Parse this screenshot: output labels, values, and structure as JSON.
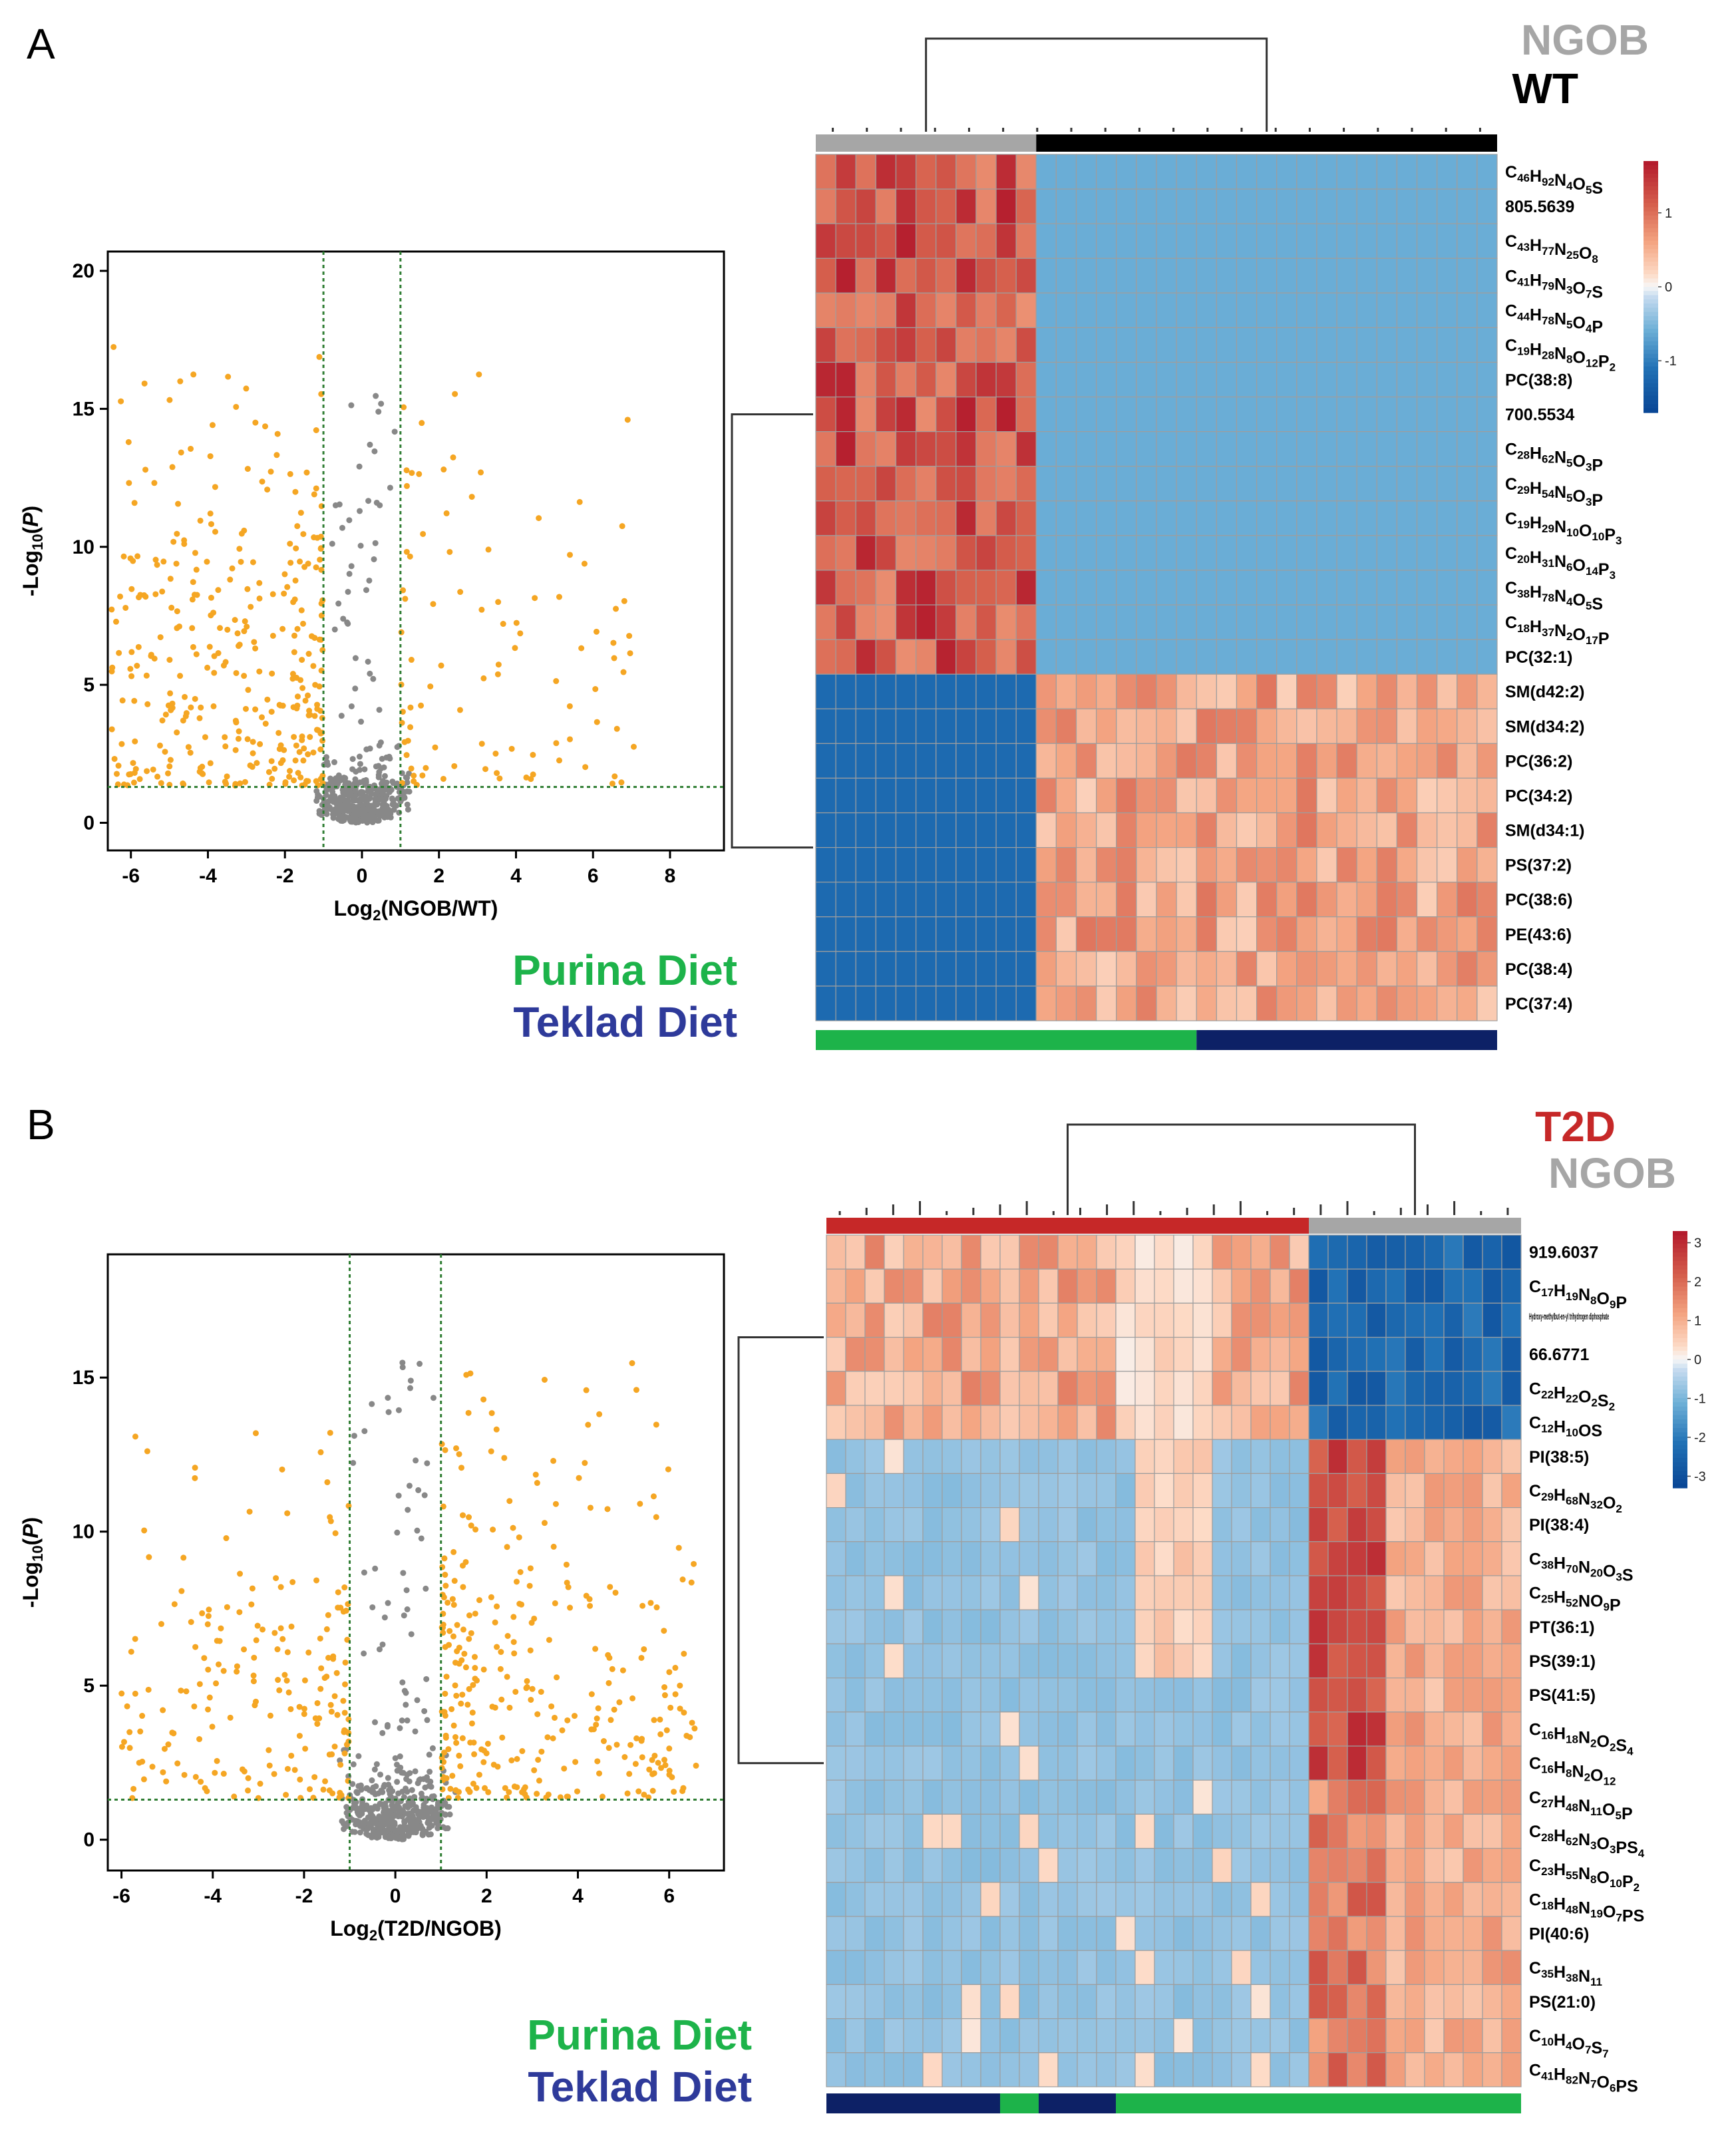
{
  "panels": [
    {
      "letter": "A",
      "volcano": {
        "type": "scatter",
        "xlabel": "Log2(NGOB/WT)",
        "ylabel": "-Log10(P)",
        "xlim": [
          -6.6,
          9.4
        ],
        "ylim": [
          -1.0,
          20.7
        ],
        "xticks": [
          -6,
          -4,
          -2,
          0,
          2,
          4,
          6,
          8
        ],
        "yticks": [
          0,
          5,
          10,
          15,
          20
        ],
        "fc_threshold": [
          -1,
          1
        ],
        "p_threshold": 1.3,
        "seed": 11,
        "n_sig_left": 330,
        "n_sig_right": 95,
        "n_nonsig": 420,
        "max_x_right": 7.2,
        "max_x_left": -6.5,
        "colors": {
          "significant": "#f5a623",
          "nonsignificant": "#888888",
          "threshold": "#2e7d32"
        }
      },
      "heatmap": {
        "type": "heatmap",
        "row_labels": [
          "C46H92N4O5S",
          "805.5639",
          "C43H77N25O8",
          "C41H79N3O7S",
          "C44H78N5O4P",
          "C19H28N8O12P2",
          "PC(38:8)",
          "700.5534",
          "C28H62N5O3P",
          "C29H54N5O3P",
          "C19H29N10O10P3",
          "C20H31N6O14P3",
          "C38H78N4O5S",
          "C18H37N2O17P",
          "PC(32:1)",
          "SM(d42:2)",
          "SM(d34:2)",
          "PC(36:2)",
          "PC(34:2)",
          "SM(d34:1)",
          "PS(37:2)",
          "PC(38:6)",
          "PE(43:6)",
          "PC(38:4)",
          "PC(37:4)"
        ],
        "n_cols": 34,
        "group_labels": [
          "NGOB",
          "WT"
        ],
        "group_colors": [
          "#a6a6a6",
          "#000000"
        ],
        "col_groups": [
          11,
          23
        ],
        "diet_split": [
          19,
          15
        ],
        "diet_colors": [
          "#1db34a",
          "#0d2166"
        ],
        "colorbar_ticks": [
          1,
          0,
          -1
        ],
        "colorbar_range": [
          -1.7,
          1.7
        ],
        "seed": 5
      },
      "diet_legend": [
        "Purina Diet",
        "Teklad Diet"
      ]
    },
    {
      "letter": "B",
      "volcano": {
        "type": "scatter",
        "xlabel": "Log2(T2D/NGOB)",
        "ylabel": "-Log10(P)",
        "xlim": [
          -6.3,
          7.2
        ],
        "ylim": [
          -1.0,
          19.0
        ],
        "xticks": [
          -6,
          -4,
          -2,
          0,
          2,
          4,
          6
        ],
        "yticks": [
          0,
          5,
          10,
          15
        ],
        "fc_threshold": [
          -1,
          1
        ],
        "p_threshold": 1.3,
        "seed": 23,
        "n_sig_left": 190,
        "n_sig_right": 300,
        "n_nonsig": 500,
        "max_x_right": 6.6,
        "max_x_left": -6.0,
        "colors": {
          "significant": "#f5a623",
          "nonsignificant": "#888888",
          "threshold": "#2e7d32"
        }
      },
      "heatmap": {
        "type": "heatmap",
        "row_labels": [
          "919.6037",
          "C17H19N8O9P",
          "Hydroxy-methylbut-en-yl trihydrogen diphosphate",
          "66.6771",
          "C22H22O2S2",
          "C12H10OS",
          "PI(38:5)",
          "C29H68N32O2",
          "PI(38:4)",
          "C38H70N20O3S",
          "C25H52NO9P",
          "PT(36:1)",
          "PS(39:1)",
          "PS(41:5)",
          "C16H18N2O2S4",
          "C16H8N2O12",
          "C27H48N11O5P",
          "C28H62N3O3PS4",
          "C23H55N8O10P2",
          "C18H48N19O7PS",
          "PI(40:6)",
          "C35H38N11",
          "PS(21:0)",
          "C10H4O7S7",
          "C41H82N7O6PS"
        ],
        "n_cols": 36,
        "group_labels": [
          "T2D",
          "NGOB"
        ],
        "group_colors": [
          "#c62828",
          "#a6a6a6"
        ],
        "col_groups": [
          25,
          11
        ],
        "diet_segments": [
          [
            9,
            1
          ],
          [
            2,
            0
          ],
          [
            4,
            1
          ],
          [
            21,
            0
          ]
        ],
        "diet_colors": [
          "#1db34a",
          "#0d2166"
        ],
        "colorbar_ticks": [
          3,
          2,
          1,
          0,
          -1,
          -2,
          -3
        ],
        "colorbar_range": [
          -3.3,
          3.3
        ],
        "seed": 9
      },
      "diet_legend": [
        "Purina Diet",
        "Teklad Diet"
      ]
    }
  ]
}
